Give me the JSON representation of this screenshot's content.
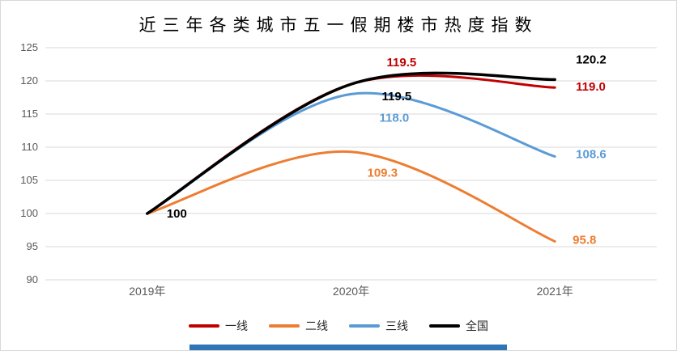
{
  "chart_data": {
    "type": "line",
    "title": "近三年各类城市五一假期楼市热度指数",
    "categories": [
      "2019年",
      "2020年",
      "2021年"
    ],
    "series": [
      {
        "name": "一线",
        "color": "#C00000",
        "values": [
          100,
          119.5,
          119.0
        ],
        "labels": [
          null,
          "119.5",
          "119.0"
        ]
      },
      {
        "name": "二线",
        "color": "#ED7D31",
        "values": [
          100,
          109.3,
          95.8
        ],
        "labels": [
          null,
          "109.3",
          "95.8"
        ]
      },
      {
        "name": "三线",
        "color": "#5B9BD5",
        "values": [
          100,
          118.0,
          108.6
        ],
        "labels": [
          null,
          "118.0",
          "108.6"
        ]
      },
      {
        "name": "全国",
        "color": "#000000",
        "values": [
          100,
          119.5,
          120.2
        ],
        "labels": [
          "100",
          "119.5",
          "120.2"
        ]
      }
    ],
    "y_axis": {
      "min": 90,
      "max": 125,
      "step": 5,
      "ticks": [
        "90",
        "95",
        "100",
        "105",
        "110",
        "115",
        "120",
        "125"
      ]
    },
    "x_axis": {
      "label": ""
    },
    "grid": true,
    "smooth": true,
    "legend_position": "bottom"
  },
  "colors": {
    "grid": "#D9D9D9",
    "axis_text": "#595959",
    "background": "#FFFFFF",
    "accent_strip": "#2E75B6"
  }
}
